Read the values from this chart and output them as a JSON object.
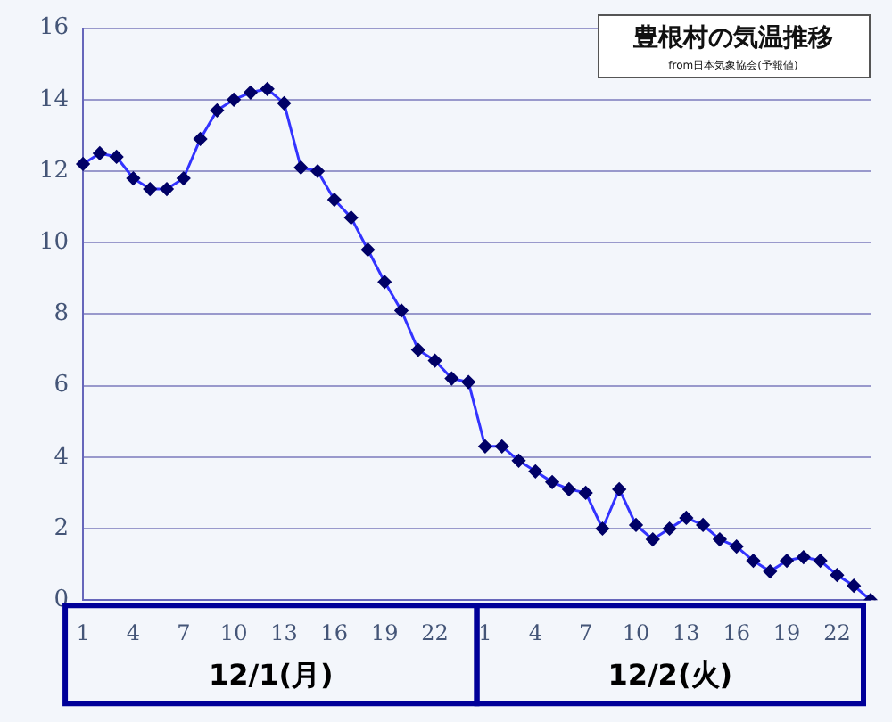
{
  "chart_data": {
    "type": "line",
    "title": "豊根村の気温推移",
    "subtitle": "from日本気象協会(予報値)",
    "categories": [
      "1",
      null,
      null,
      "4",
      null,
      null,
      "7",
      null,
      null,
      "10",
      null,
      null,
      "13",
      null,
      null,
      "16",
      null,
      null,
      "19",
      null,
      null,
      "22",
      null,
      null,
      "1",
      null,
      null,
      "4",
      null,
      null,
      "7",
      null,
      null,
      "10",
      null,
      null,
      "13",
      null,
      null,
      "16",
      null,
      null,
      "19",
      null,
      null,
      "22",
      null,
      null
    ],
    "series": [
      {
        "color": "#3333ff",
        "values": [
          12.2,
          12.5,
          12.4,
          11.8,
          11.5,
          11.5,
          11.8,
          12.9,
          13.7,
          14.0,
          14.2,
          14.3,
          13.9,
          12.1,
          12.0,
          11.2,
          10.7,
          9.8,
          8.9,
          8.1,
          7.0,
          6.7,
          6.2,
          6.1,
          4.3,
          4.3,
          3.9,
          3.6,
          3.3,
          3.1,
          3.0,
          2.0,
          3.1,
          2.1,
          1.7,
          2.0,
          2.3,
          2.1,
          1.7,
          1.5,
          1.1,
          0.8,
          1.1,
          1.2,
          1.1,
          0.7,
          0.4,
          0.0
        ]
      }
    ],
    "ylim": [
      0,
      16
    ],
    "yticks": [
      0,
      2,
      4,
      6,
      8,
      10,
      12,
      14,
      16
    ],
    "grid": "y",
    "legend": false,
    "marker": "diamond",
    "line_style": "solid",
    "annotations": [
      "12/1(月)",
      "12/2(火)"
    ]
  }
}
